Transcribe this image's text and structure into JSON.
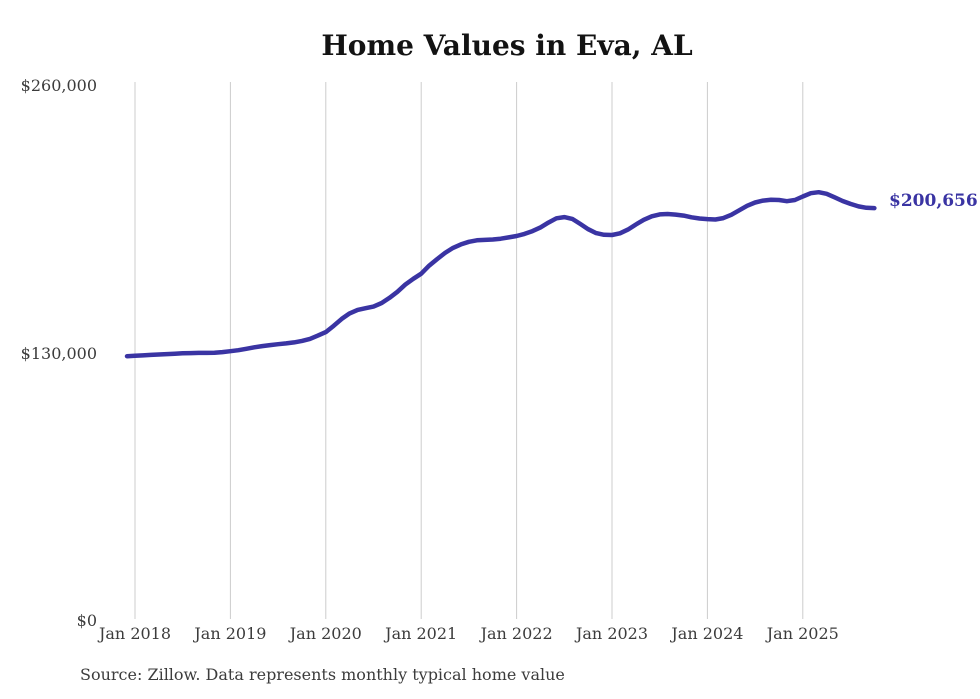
{
  "chart": {
    "title": "Home Values in Eva, AL",
    "end_value_label": "$200,656",
    "source_note": "Source: Zillow. Data represents monthly typical home value"
  },
  "chart_data": {
    "type": "line",
    "title": "Home Values in Eva, AL",
    "xlabel": "",
    "ylabel": "",
    "ylim": [
      0,
      260000
    ],
    "y_tick_values": [
      0,
      130000,
      260000
    ],
    "y_tick_labels": [
      "$0",
      "$130,000",
      "$260,000"
    ],
    "x_tick_labels": [
      "Jan 2018",
      "Jan 2019",
      "Jan 2020",
      "Jan 2021",
      "Jan 2022",
      "Jan 2023",
      "Jan 2024",
      "Jan 2025"
    ],
    "grid": "vertical-only",
    "legend": "none",
    "annotations": [
      {
        "text": "$200,656",
        "position": "line-end"
      }
    ],
    "last_value": 200656,
    "series": [
      {
        "name": "Monthly typical home value",
        "unit": "USD",
        "frequency": "monthly",
        "start_month": "Dec 2017",
        "end_month": "Oct 2025",
        "values": [
          128700,
          128900,
          129100,
          129300,
          129500,
          129700,
          129900,
          130100,
          130200,
          130300,
          130300,
          130400,
          130700,
          131100,
          131600,
          132300,
          133000,
          133600,
          134100,
          134500,
          134900,
          135400,
          136100,
          137100,
          138700,
          140400,
          143500,
          146800,
          149500,
          151200,
          152000,
          152800,
          154500,
          157000,
          160000,
          163500,
          166300,
          168800,
          172700,
          175900,
          178900,
          181300,
          183000,
          184300,
          185000,
          185200,
          185400,
          185800,
          186400,
          187100,
          188100,
          189500,
          191300,
          193600,
          195700,
          196300,
          195400,
          193000,
          190400,
          188500,
          187700,
          187600,
          188400,
          190200,
          192700,
          195000,
          196700,
          197600,
          197800,
          197500,
          197000,
          196200,
          195600,
          195300,
          195100,
          195800,
          197400,
          199600,
          201800,
          203400,
          204300,
          204700,
          204600,
          204000,
          204600,
          206300,
          207900,
          208400,
          207600,
          205900,
          204100,
          202700,
          201500,
          200800,
          200656
        ]
      }
    ],
    "colors": {
      "line": "#3a34a3",
      "grid": "#cccccc",
      "axis_text": "#3c3c3c",
      "title_text": "#131313",
      "background": "#ffffff"
    }
  }
}
